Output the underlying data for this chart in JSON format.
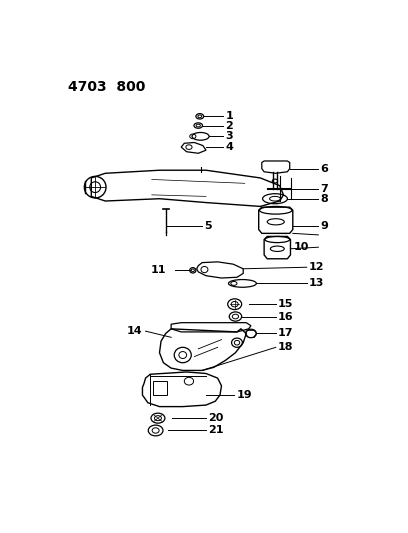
{
  "title": "4703  800",
  "bg_color": "#ffffff",
  "line_color": "#000000",
  "title_fontsize": 10,
  "label_fontsize": 8
}
